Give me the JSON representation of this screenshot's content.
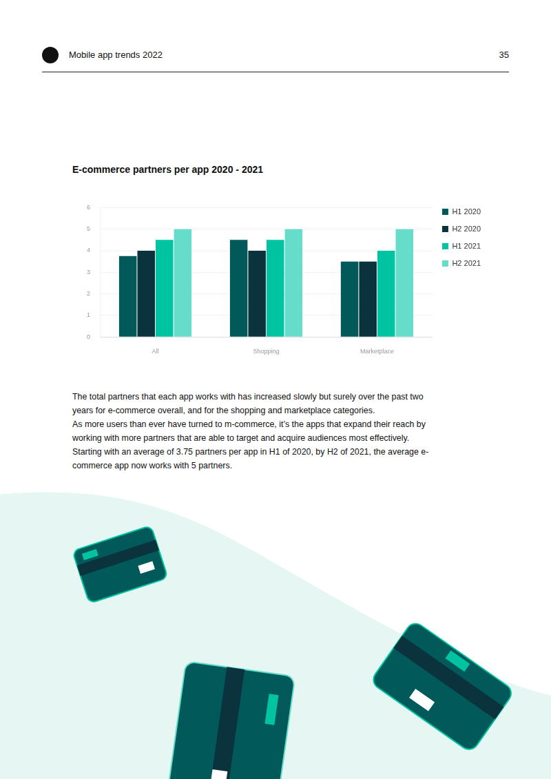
{
  "header": {
    "title": "Mobile app trends 2022",
    "page": 35
  },
  "chart_data": {
    "type": "bar",
    "title": "E-commerce partners per app 2020 - 2021",
    "categories": [
      "All",
      "Shopping",
      "Marketplace"
    ],
    "series": [
      {
        "name": "H1 2020",
        "color": "#02595a",
        "values": [
          3.75,
          4.5,
          3.5
        ]
      },
      {
        "name": "H2 2020",
        "color": "#0b333d",
        "values": [
          4,
          4,
          3.5
        ]
      },
      {
        "name": "H1 2021",
        "color": "#00c4a1",
        "values": [
          4.5,
          4.5,
          4
        ]
      },
      {
        "name": "H2 2021",
        "color": "#66ddcb",
        "values": [
          5,
          5,
          5
        ]
      }
    ],
    "ylim": [
      0,
      6
    ],
    "yticks": [
      0,
      1,
      2,
      3,
      4,
      5,
      6
    ],
    "grid": true,
    "legend": "right"
  },
  "body": {
    "paragraphs": [
      "The total partners that each app works with has increased slowly but surely over the past two years for e-commerce overall, and for the shopping and marketplace categories.",
      "As more users than ever have turned to m-commerce, it’s the apps that expand their reach by working with more partners that are able to target and acquire audiences most effectively. Starting with an average of 3.75 partners per app in H1 of 2020, by H2 of 2021, the average e-commerce app now works with 5 partners."
    ]
  }
}
